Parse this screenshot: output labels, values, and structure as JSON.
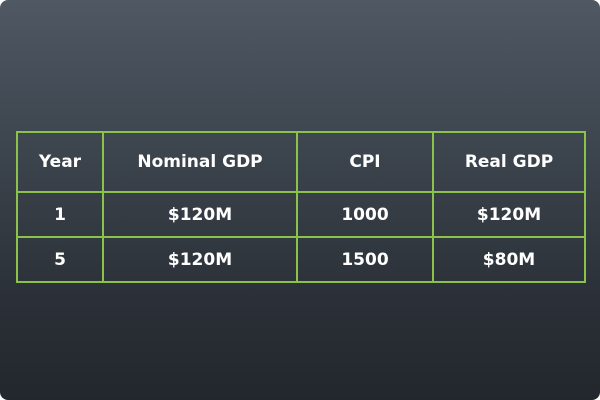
{
  "table": {
    "headers": [
      "Year",
      "Nominal GDP",
      "CPI",
      "Real GDP"
    ],
    "rows": [
      [
        "1",
        "$120M",
        "1000",
        "$120M"
      ],
      [
        "5",
        "$120M",
        "1500",
        "$80M"
      ]
    ]
  },
  "colors": {
    "background_top": "#4f5863",
    "background_bottom": "#22272d",
    "table_border": "#8bc34a",
    "text": "#ffffff"
  }
}
